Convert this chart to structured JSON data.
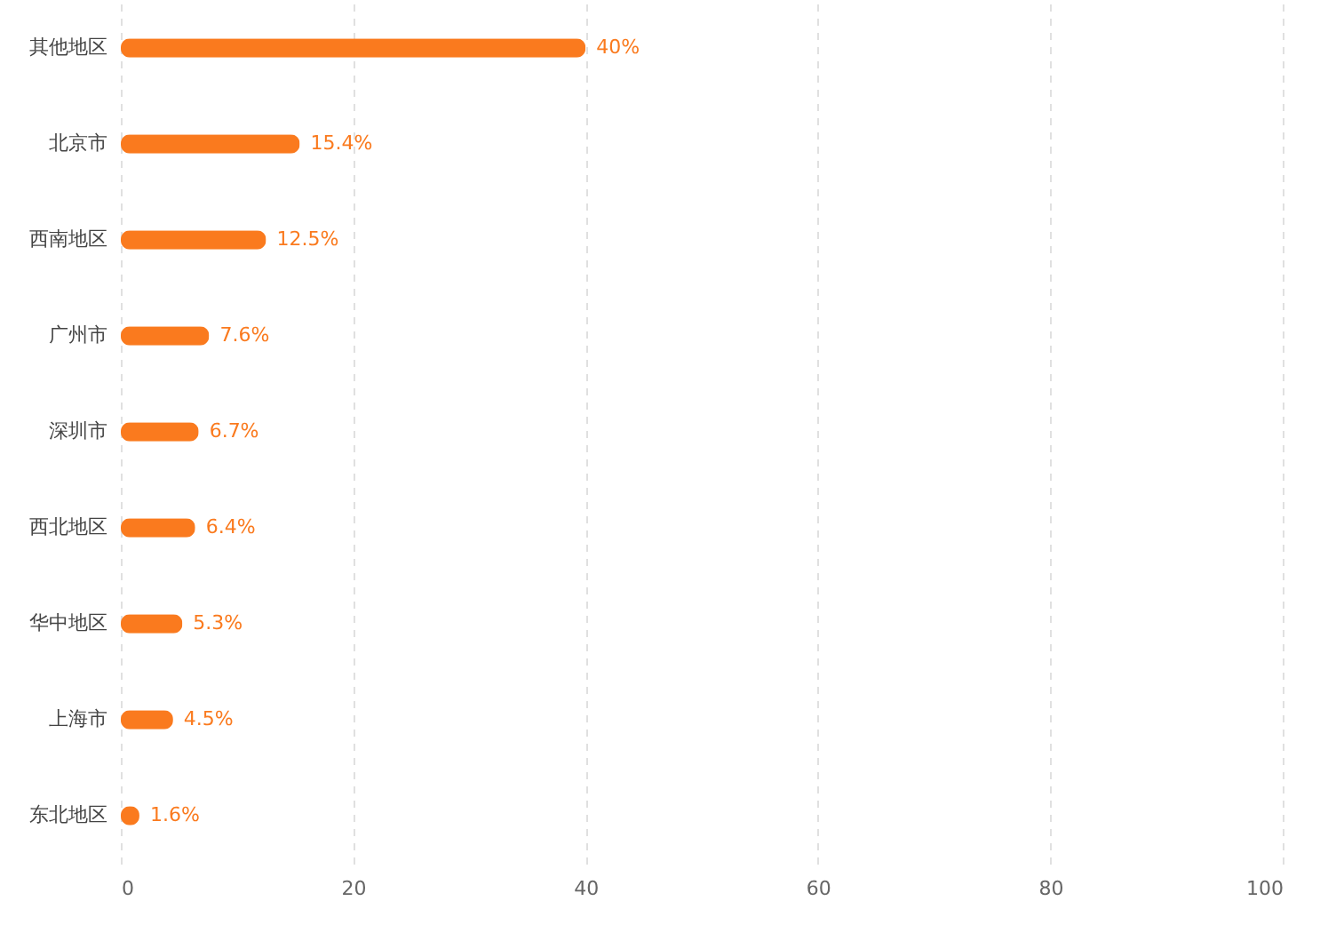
{
  "chart_data": {
    "type": "bar",
    "orientation": "horizontal",
    "categories": [
      "其他地区",
      "北京市",
      "西南地区",
      "广州市",
      "深圳市",
      "西北地区",
      "华中地区",
      "上海市",
      "东北地区"
    ],
    "values": [
      40,
      15.4,
      12.5,
      7.6,
      6.7,
      6.4,
      5.3,
      4.5,
      1.6
    ],
    "value_labels": [
      "40%",
      "15.4%",
      "12.5%",
      "7.6%",
      "6.7%",
      "6.4%",
      "5.3%",
      "4.5%",
      "1.6%"
    ],
    "color": "#fa7a1e",
    "xlim": [
      0,
      100
    ],
    "xticks": [
      0,
      20,
      40,
      60,
      80,
      100
    ],
    "grid": "x"
  }
}
